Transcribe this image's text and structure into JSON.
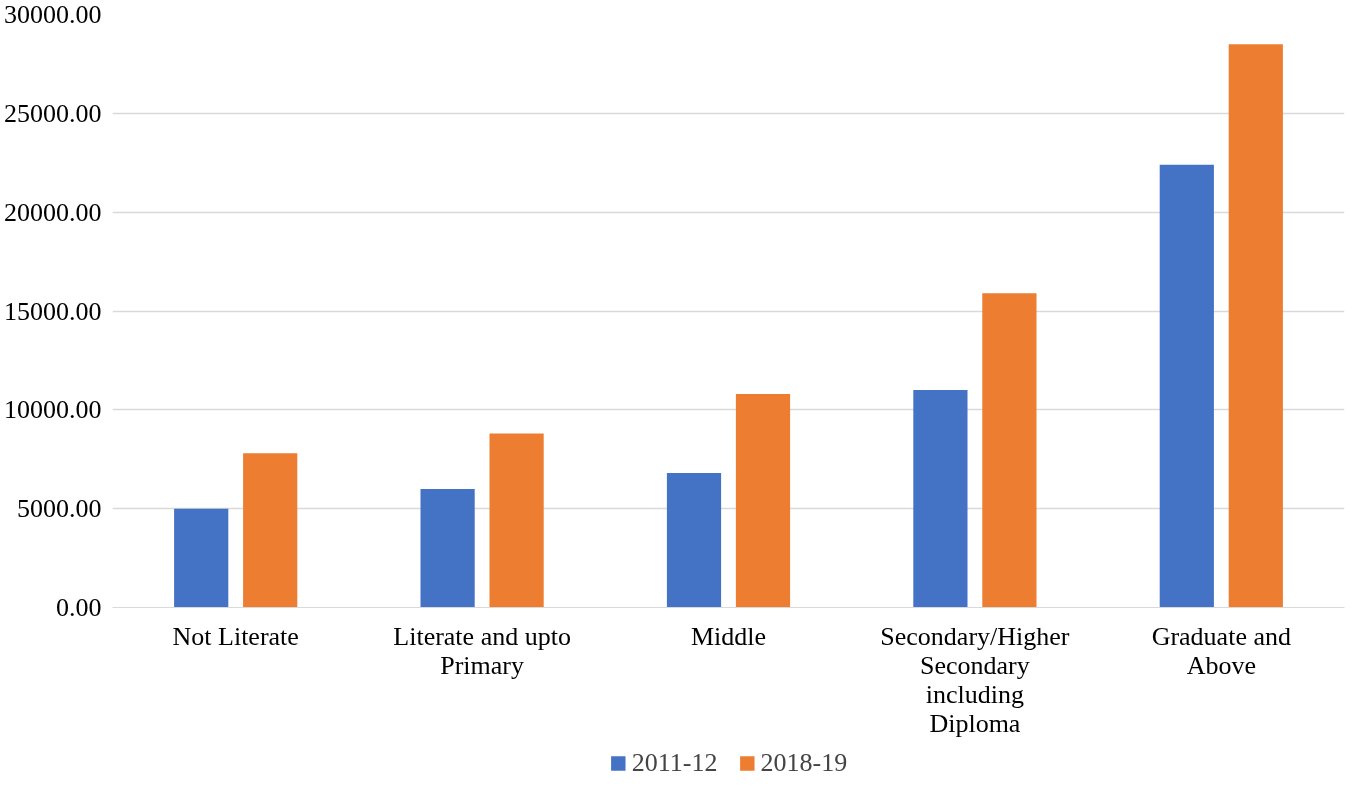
{
  "chart_data": {
    "type": "bar",
    "categories": [
      "Not Literate",
      "Literate and upto\nPrimary",
      "Middle",
      "Secondary/Higher\nSecondary\nincluding\nDiploma",
      "Graduate and\nAbove"
    ],
    "series": [
      {
        "name": "2011-12",
        "color": "#4472c4",
        "values": [
          5000,
          6000,
          6800,
          11000,
          22400
        ]
      },
      {
        "name": "2018-19",
        "color": "#ed7d31",
        "values": [
          7800,
          8800,
          10800,
          15900,
          28500
        ]
      }
    ],
    "ylim": [
      0,
      30000
    ],
    "yticks": [
      {
        "value": 0,
        "label": "0.00"
      },
      {
        "value": 5000,
        "label": "5000.00"
      },
      {
        "value": 10000,
        "label": "10000.00"
      },
      {
        "value": 15000,
        "label": "15000.00"
      },
      {
        "value": 20000,
        "label": "20000.00"
      },
      {
        "value": 25000,
        "label": "25000.00"
      },
      {
        "value": 30000,
        "label": "30000.00"
      }
    ],
    "grid": "y",
    "legend": "bottom"
  }
}
